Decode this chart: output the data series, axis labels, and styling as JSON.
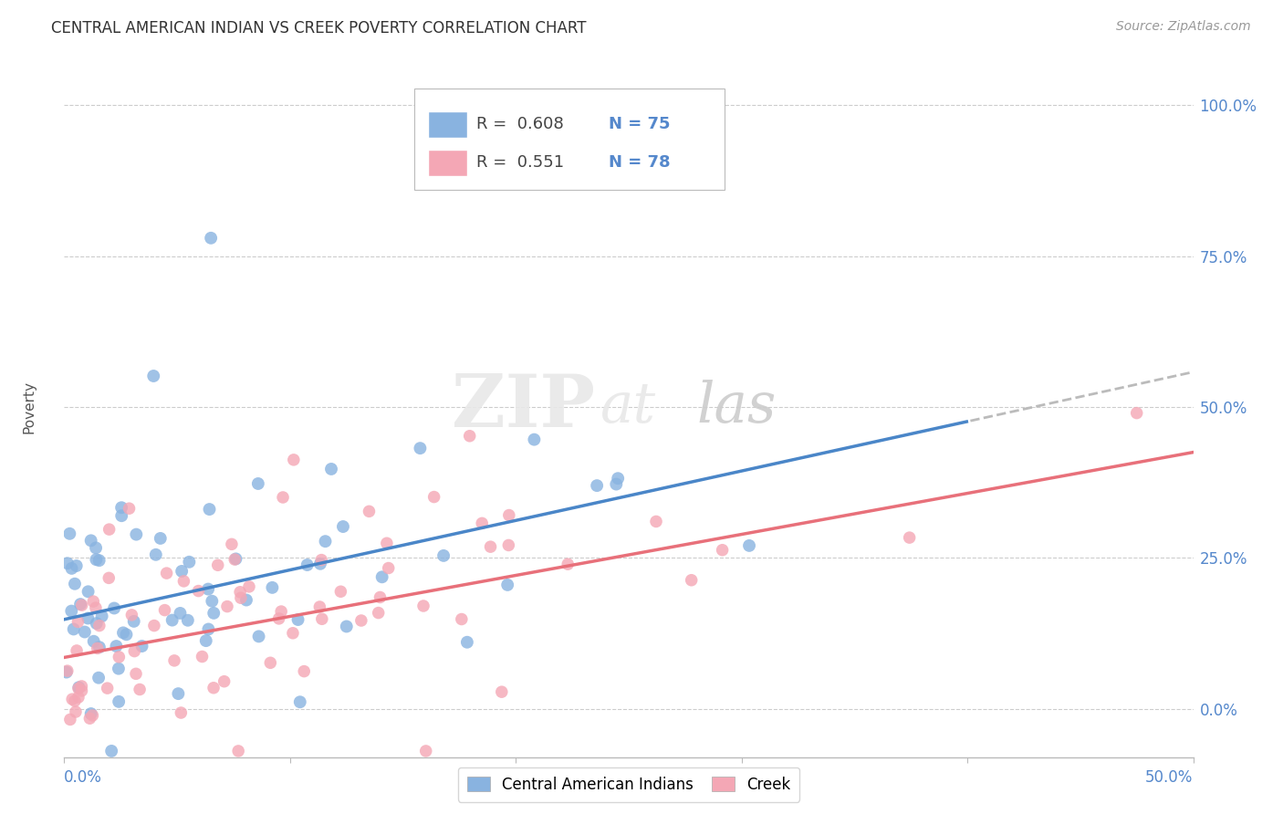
{
  "title": "CENTRAL AMERICAN INDIAN VS CREEK POVERTY CORRELATION CHART",
  "source": "Source: ZipAtlas.com",
  "ylabel": "Poverty",
  "ytick_labels": [
    "0.0%",
    "25.0%",
    "50.0%",
    "75.0%",
    "100.0%"
  ],
  "ytick_values": [
    0.0,
    0.25,
    0.5,
    0.75,
    1.0
  ],
  "xlim": [
    0.0,
    0.5
  ],
  "ylim": [
    -0.08,
    1.08
  ],
  "blue_R": 0.608,
  "blue_N": 75,
  "pink_R": 0.551,
  "pink_N": 78,
  "blue_color": "#89B3E0",
  "pink_color": "#F4A7B5",
  "blue_line_color": "#4A86C8",
  "pink_line_color": "#E8707A",
  "tick_label_color": "#5588CC",
  "trendline_color_gray": "#BBBBBB",
  "title_fontsize": 12,
  "source_fontsize": 10,
  "axis_label_fontsize": 11,
  "seed_blue": 42,
  "seed_pink": 17,
  "blue_intercept": 0.148,
  "blue_slope": 0.82,
  "pink_intercept": 0.085,
  "pink_slope": 0.68
}
